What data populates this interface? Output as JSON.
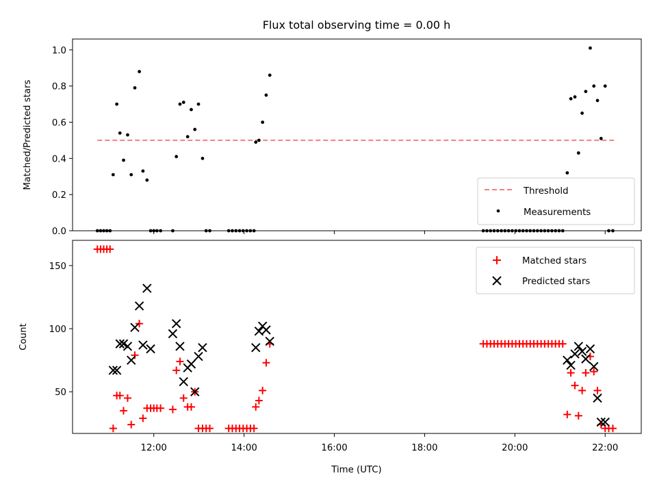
{
  "chart_data": [
    {
      "type": "scatter",
      "title": "Flux total observing time = 0.00 h",
      "ylabel": "Matched/Predicted stars",
      "xlabel": "",
      "xlim": [
        10.2,
        22.8
      ],
      "ylim": [
        0,
        1.06
      ],
      "yticks": [
        0.0,
        0.2,
        0.4,
        0.6,
        0.8,
        1.0
      ],
      "ytick_labels": [
        "0.0",
        "0.2",
        "0.4",
        "0.6",
        "0.8",
        "1.0"
      ],
      "xticks": [
        12,
        14,
        16,
        18,
        20,
        22
      ],
      "xtick_labels": [
        "",
        "",
        "",
        "",
        "",
        ""
      ],
      "legend_position": "lower-right",
      "threshold": {
        "name": "Threshold",
        "y": 0.5,
        "x_range": [
          10.75,
          22.2
        ],
        "color": "#f08080",
        "style": "dashed"
      },
      "series": [
        {
          "name": "Measurements",
          "color": "#000000",
          "marker": "dot",
          "x": [
            10.75,
            10.82,
            10.89,
            10.96,
            11.03,
            11.1,
            11.18,
            11.25,
            11.33,
            11.42,
            11.5,
            11.58,
            11.68,
            11.76,
            11.85,
            11.93,
            12.0,
            12.07,
            12.15,
            12.42,
            12.5,
            12.58,
            12.66,
            12.75,
            12.83,
            12.91,
            12.99,
            13.08,
            13.16,
            13.24,
            13.66,
            13.74,
            13.82,
            13.9,
            13.98,
            14.06,
            14.14,
            14.22,
            14.26,
            14.33,
            14.41,
            14.49,
            14.57,
            19.3,
            19.38,
            19.46,
            19.54,
            19.62,
            19.7,
            19.78,
            19.86,
            19.94,
            20.02,
            20.1,
            20.18,
            20.26,
            20.34,
            20.42,
            20.5,
            20.58,
            20.66,
            20.74,
            20.82,
            20.9,
            20.98,
            21.06,
            21.16,
            21.24,
            21.33,
            21.41,
            21.49,
            21.57,
            21.67,
            21.75,
            21.83,
            21.91,
            22.0,
            22.08,
            22.17
          ],
          "y": [
            0,
            0,
            0,
            0,
            0,
            0.31,
            0.7,
            0.54,
            0.39,
            0.53,
            0.31,
            0.79,
            0.88,
            0.33,
            0.28,
            0,
            0,
            0,
            0,
            0,
            0.41,
            0.7,
            0.71,
            0.52,
            0.67,
            0.56,
            0.7,
            0.4,
            0,
            0,
            0,
            0,
            0,
            0,
            0,
            0,
            0,
            0,
            0.49,
            0.5,
            0.6,
            0.75,
            0.86,
            0,
            0,
            0,
            0,
            0,
            0,
            0,
            0,
            0,
            0,
            0,
            0,
            0,
            0,
            0,
            0,
            0,
            0,
            0,
            0,
            0,
            0,
            0,
            0.32,
            0.73,
            0.74,
            0.43,
            0.65,
            0.77,
            1.01,
            0.8,
            0.72,
            0.51,
            0.8,
            0,
            0
          ]
        }
      ]
    },
    {
      "type": "scatter",
      "title": "",
      "ylabel": "Count",
      "xlabel": "Time (UTC)",
      "xlim": [
        10.2,
        22.8
      ],
      "ylim": [
        17,
        170
      ],
      "yticks": [
        50,
        100,
        150
      ],
      "ytick_labels": [
        "50",
        "100",
        "150"
      ],
      "xticks": [
        12,
        14,
        16,
        18,
        20,
        22
      ],
      "xtick_labels": [
        "12:00",
        "14:00",
        "16:00",
        "18:00",
        "20:00",
        "22:00"
      ],
      "legend_position": "upper-right",
      "series": [
        {
          "name": "Matched stars",
          "color": "#ff0000",
          "marker": "plus",
          "x": [
            10.75,
            10.82,
            10.89,
            10.96,
            11.03,
            11.1,
            11.18,
            11.25,
            11.33,
            11.42,
            11.5,
            11.58,
            11.68,
            11.76,
            11.85,
            11.93,
            12.0,
            12.07,
            12.15,
            12.42,
            12.5,
            12.58,
            12.66,
            12.75,
            12.83,
            12.91,
            12.99,
            13.08,
            13.16,
            13.24,
            13.66,
            13.74,
            13.82,
            13.9,
            13.98,
            14.06,
            14.14,
            14.22,
            14.26,
            14.33,
            14.41,
            14.49,
            14.57,
            19.3,
            19.38,
            19.46,
            19.54,
            19.62,
            19.7,
            19.78,
            19.86,
            19.94,
            20.02,
            20.1,
            20.18,
            20.26,
            20.34,
            20.42,
            20.5,
            20.58,
            20.66,
            20.74,
            20.82,
            20.9,
            20.98,
            21.06,
            21.16,
            21.24,
            21.33,
            21.41,
            21.49,
            21.57,
            21.67,
            21.75,
            21.83,
            21.91,
            22.0,
            22.08,
            22.17
          ],
          "y": [
            163,
            163,
            163,
            163,
            163,
            21,
            47,
            47,
            35,
            45,
            24,
            79,
            104,
            29,
            37,
            37,
            37,
            37,
            37,
            36,
            67,
            74,
            45,
            38,
            38,
            50,
            21,
            21,
            21,
            21,
            21,
            21,
            21,
            21,
            21,
            21,
            21,
            21,
            38,
            43,
            51,
            73,
            88,
            88,
            88,
            88,
            88,
            88,
            88,
            88,
            88,
            88,
            88,
            88,
            88,
            88,
            88,
            88,
            88,
            88,
            88,
            88,
            88,
            88,
            88,
            88,
            32,
            65,
            55,
            31,
            51,
            65,
            78,
            66,
            51,
            24,
            21,
            21,
            21
          ]
        },
        {
          "name": "Predicted stars",
          "color": "#000000",
          "marker": "x",
          "x": [
            11.1,
            11.18,
            11.25,
            11.33,
            11.42,
            11.5,
            11.58,
            11.68,
            11.76,
            11.85,
            11.93,
            12.42,
            12.5,
            12.58,
            12.66,
            12.75,
            12.83,
            12.91,
            12.99,
            13.08,
            14.26,
            14.33,
            14.41,
            14.49,
            14.57,
            21.16,
            21.24,
            21.33,
            21.41,
            21.49,
            21.57,
            21.67,
            21.75,
            21.83,
            21.91,
            22.0
          ],
          "y": [
            67,
            67,
            88,
            88,
            86,
            75,
            101,
            118,
            87,
            132,
            84,
            96,
            104,
            86,
            58,
            69,
            72,
            50,
            78,
            85,
            85,
            98,
            102,
            99,
            90,
            75,
            71,
            80,
            86,
            82,
            76,
            84,
            70,
            45,
            26,
            26
          ]
        }
      ]
    }
  ]
}
